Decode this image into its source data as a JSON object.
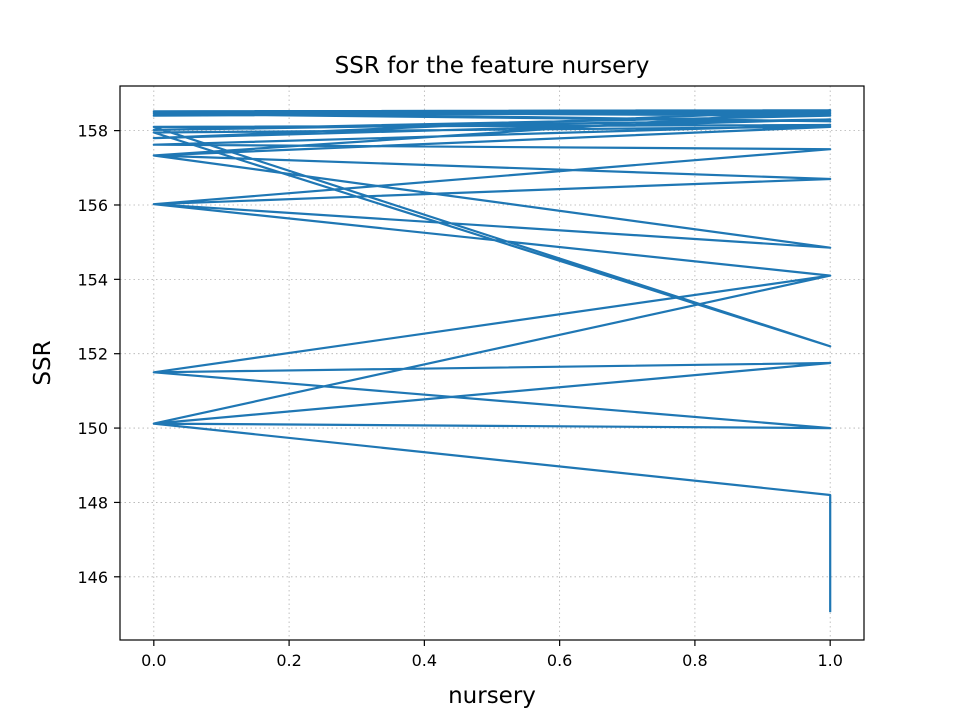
{
  "chart_data": {
    "type": "line",
    "title": "SSR for the feature nursery",
    "xlabel": "nursery",
    "ylabel": "SSR",
    "xlim": [
      -0.05,
      1.05
    ],
    "ylim": [
      144.3,
      159.2
    ],
    "xticks": [
      0.0,
      0.2,
      0.4,
      0.6,
      0.8,
      1.0
    ],
    "xtick_labels": [
      "0.0",
      "0.2",
      "0.4",
      "0.6",
      "0.8",
      "1.0"
    ],
    "yticks": [
      146,
      148,
      150,
      152,
      154,
      156,
      158
    ],
    "ytick_labels": [
      "146",
      "148",
      "150",
      "152",
      "154",
      "156",
      "158"
    ],
    "grid": true,
    "grid_style": "dotted",
    "color": "#1f77b4",
    "series": [
      {
        "x": [
          1,
          1,
          0,
          1,
          0,
          1,
          0,
          1,
          0,
          1,
          0,
          1,
          0,
          1,
          0,
          1,
          0,
          1,
          0,
          1,
          0,
          1,
          0,
          1,
          0,
          1,
          0,
          1,
          0,
          1,
          0,
          1,
          0,
          1,
          0,
          1,
          0,
          1
        ],
        "y": [
          145.05,
          148.2,
          150.12,
          150.0,
          151.5,
          151.75,
          150.12,
          154.1,
          151.5,
          154.1,
          156.02,
          154.85,
          157.33,
          156.7,
          156.02,
          157.5,
          157.62,
          158.15,
          158.1,
          152.2,
          157.95,
          158.1,
          157.33,
          158.55,
          157.8,
          158.3,
          158.02,
          158.4,
          158.5,
          158.25,
          158.45,
          158.5,
          158.4,
          158.55,
          158.5,
          158.45,
          158.52,
          158.55
        ]
      }
    ]
  }
}
